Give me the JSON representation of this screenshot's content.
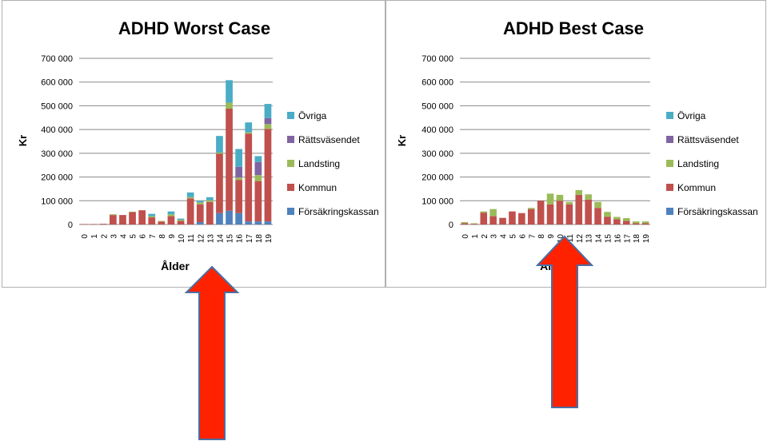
{
  "colors": {
    "Försäkringskassan": "#4f81bd",
    "Kommun": "#c0504d",
    "Landsting": "#9bbb59",
    "Rättsväsendet": "#8064a2",
    "Övriga": "#4bacc6",
    "arrow_fill": "#ff2200",
    "arrow_stroke": "#4a6fa5",
    "grid": "#888888",
    "text": "#000000"
  },
  "chart_data": [
    {
      "type": "bar",
      "stacked": true,
      "title": "ADHD Worst Case",
      "xlabel": "Ålder",
      "ylabel": "Kr",
      "ylim": [
        0,
        700000
      ],
      "yticks": [
        0,
        100000,
        200000,
        300000,
        400000,
        500000,
        600000,
        700000
      ],
      "ytick_labels": [
        "0",
        "100 000",
        "200 000",
        "300 000",
        "400 000",
        "500 000",
        "600 000",
        "700 000"
      ],
      "grid": true,
      "legend_position": "right",
      "legend": [
        "Övriga",
        "Rättsväsendet",
        "Landsting",
        "Kommun",
        "Försäkringskassan"
      ],
      "categories": [
        "0",
        "1",
        "2",
        "3",
        "4",
        "5",
        "6",
        "7",
        "8",
        "9",
        "10",
        "11",
        "12",
        "13",
        "14",
        "15",
        "16",
        "17",
        "18",
        "19"
      ],
      "series": [
        {
          "name": "Försäkringskassan",
          "values": [
            0,
            0,
            0,
            0,
            0,
            0,
            0,
            0,
            0,
            0,
            0,
            0,
            10000,
            0,
            48000,
            58000,
            48000,
            13000,
            13000,
            13000
          ]
        },
        {
          "name": "Kommun",
          "values": [
            2000,
            2000,
            3000,
            40000,
            40000,
            52000,
            60000,
            30000,
            12000,
            35000,
            15000,
            110000,
            75000,
            95000,
            250000,
            430000,
            140000,
            370000,
            170000,
            390000
          ]
        },
        {
          "name": "Landsting",
          "values": [
            0,
            0,
            0,
            3000,
            0,
            2000,
            0,
            5000,
            3000,
            8000,
            5000,
            5000,
            8000,
            7000,
            5000,
            25000,
            10000,
            5000,
            25000,
            20000
          ]
        },
        {
          "name": "Rättsväsendet",
          "values": [
            0,
            0,
            0,
            0,
            0,
            0,
            0,
            0,
            0,
            0,
            0,
            0,
            0,
            0,
            0,
            0,
            45000,
            0,
            55000,
            25000
          ]
        },
        {
          "name": "Övriga",
          "values": [
            0,
            0,
            0,
            0,
            0,
            0,
            0,
            10000,
            0,
            12000,
            5000,
            20000,
            7000,
            13000,
            70000,
            95000,
            75000,
            42000,
            25000,
            60000
          ]
        }
      ]
    },
    {
      "type": "bar",
      "stacked": true,
      "title": "ADHD Best Case",
      "xlabel": "Ålder",
      "ylabel": "Kr",
      "ylim": [
        0,
        700000
      ],
      "yticks": [
        0,
        100000,
        200000,
        300000,
        400000,
        500000,
        600000,
        700000
      ],
      "ytick_labels": [
        "0",
        "100 000",
        "200 000",
        "300 000",
        "400 000",
        "500 000",
        "600 000",
        "700 000"
      ],
      "grid": true,
      "legend_position": "right",
      "legend": [
        "Övriga",
        "Rättsväsendet",
        "Landsting",
        "Kommun",
        "Försäkringskassan"
      ],
      "categories": [
        "0",
        "1",
        "2",
        "3",
        "4",
        "5",
        "6",
        "7",
        "8",
        "9",
        "10",
        "11",
        "12",
        "13",
        "14",
        "15",
        "16",
        "17",
        "18",
        "19"
      ],
      "series": [
        {
          "name": "Försäkringskassan",
          "values": [
            0,
            0,
            0,
            0,
            0,
            0,
            0,
            0,
            0,
            0,
            0,
            0,
            0,
            0,
            0,
            0,
            0,
            0,
            0,
            0
          ]
        },
        {
          "name": "Kommun",
          "values": [
            5000,
            3000,
            50000,
            35000,
            28000,
            55000,
            48000,
            65000,
            100000,
            85000,
            100000,
            85000,
            125000,
            105000,
            70000,
            33000,
            22000,
            15000,
            5000,
            5000
          ]
        },
        {
          "name": "Landsting",
          "values": [
            5000,
            2000,
            5000,
            30000,
            0,
            0,
            0,
            5000,
            0,
            45000,
            25000,
            10000,
            20000,
            22000,
            25000,
            20000,
            10000,
            12000,
            8000,
            8000
          ]
        },
        {
          "name": "Rättsväsendet",
          "values": [
            0,
            0,
            0,
            0,
            0,
            0,
            0,
            0,
            0,
            0,
            0,
            0,
            0,
            0,
            0,
            0,
            0,
            0,
            0,
            0
          ]
        },
        {
          "name": "Övriga",
          "values": [
            0,
            0,
            0,
            0,
            0,
            0,
            0,
            0,
            0,
            0,
            0,
            0,
            0,
            0,
            0,
            0,
            0,
            0,
            0,
            0
          ]
        }
      ]
    }
  ]
}
